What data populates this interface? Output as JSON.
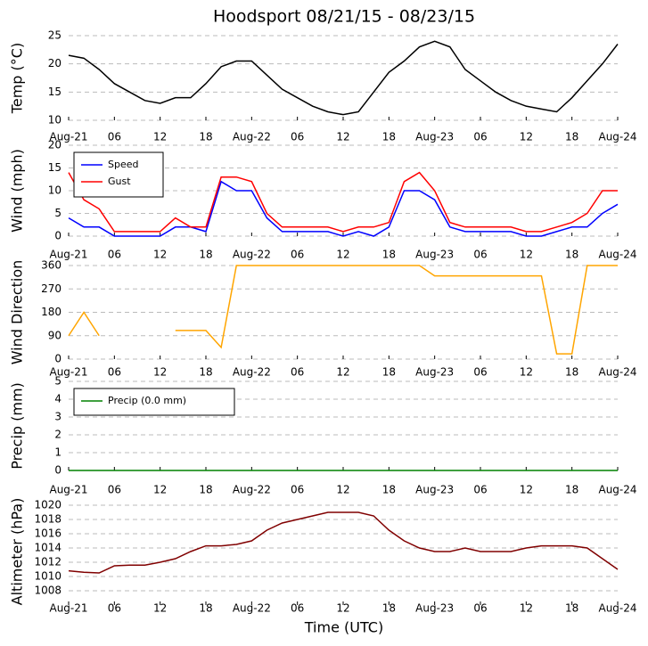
{
  "title": "Hoodsport 08/21/15 - 08/23/15",
  "xlabel": "Time (UTC)",
  "chart_data": [
    {
      "type": "line",
      "ylabel": "Temp (°C)",
      "ylim": [
        10,
        25
      ],
      "yticks": [
        10,
        15,
        20,
        25
      ],
      "grid": true,
      "x": [
        0,
        2,
        4,
        6,
        8,
        10,
        12,
        14,
        16,
        18,
        20,
        22,
        24,
        26,
        28,
        30,
        32,
        34,
        36,
        38,
        40,
        42,
        44,
        46,
        48,
        50,
        52,
        54,
        56,
        58,
        60,
        62,
        64,
        66,
        68,
        70,
        72
      ],
      "xlim": [
        0,
        72
      ],
      "xticks": [
        {
          "value": 0,
          "label": "Aug-21"
        },
        {
          "value": 6,
          "label": "06"
        },
        {
          "value": 12,
          "label": "12"
        },
        {
          "value": 18,
          "label": "18"
        },
        {
          "value": 24,
          "label": "Aug-22"
        },
        {
          "value": 30,
          "label": "06"
        },
        {
          "value": 36,
          "label": "12"
        },
        {
          "value": 42,
          "label": "18"
        },
        {
          "value": 48,
          "label": "Aug-23"
        },
        {
          "value": 54,
          "label": "06"
        },
        {
          "value": 60,
          "label": "12"
        },
        {
          "value": 66,
          "label": "18"
        },
        {
          "value": 72,
          "label": "Aug-24"
        }
      ],
      "series": [
        {
          "name": "Temp",
          "color": "#000000",
          "values": [
            21.5,
            21,
            19,
            16.5,
            15,
            13.5,
            13,
            14,
            14,
            16.5,
            19.5,
            20.5,
            20.5,
            18,
            15.5,
            14,
            12.5,
            11.5,
            11,
            11.5,
            15,
            18.5,
            20.5,
            23,
            24,
            23,
            19,
            17,
            15,
            13.5,
            12.5,
            12,
            11.5,
            14,
            17,
            20,
            23.5
          ]
        }
      ]
    },
    {
      "type": "line",
      "ylabel": "Wind (mph)",
      "ylim": [
        0,
        20
      ],
      "yticks": [
        0,
        5,
        10,
        15,
        20
      ],
      "grid": true,
      "legend": "upper left",
      "x": [
        0,
        2,
        4,
        6,
        8,
        10,
        12,
        14,
        16,
        18,
        20,
        22,
        24,
        26,
        28,
        30,
        32,
        34,
        36,
        38,
        40,
        42,
        44,
        46,
        48,
        50,
        52,
        54,
        56,
        58,
        60,
        62,
        64,
        66,
        68,
        70,
        72
      ],
      "xlim": [
        0,
        72
      ],
      "xticks": [
        {
          "value": 0,
          "label": "Aug-21"
        },
        {
          "value": 6,
          "label": "06"
        },
        {
          "value": 12,
          "label": "12"
        },
        {
          "value": 18,
          "label": "18"
        },
        {
          "value": 24,
          "label": "Aug-22"
        },
        {
          "value": 30,
          "label": "06"
        },
        {
          "value": 36,
          "label": "12"
        },
        {
          "value": 42,
          "label": "18"
        },
        {
          "value": 48,
          "label": "Aug-23"
        },
        {
          "value": 54,
          "label": "06"
        },
        {
          "value": 60,
          "label": "12"
        },
        {
          "value": 66,
          "label": "18"
        },
        {
          "value": 72,
          "label": "Aug-24"
        }
      ],
      "series": [
        {
          "name": "Speed",
          "color": "#0000ff",
          "values": [
            4,
            2,
            2,
            0,
            0,
            0,
            0,
            2,
            2,
            1,
            12,
            10,
            10,
            4,
            1,
            1,
            1,
            1,
            0,
            1,
            0,
            2,
            10,
            10,
            8,
            2,
            1,
            1,
            1,
            1,
            0,
            0,
            1,
            2,
            2,
            5,
            7
          ]
        },
        {
          "name": "Gust",
          "color": "#ff0000",
          "values": [
            14,
            8,
            6,
            1,
            1,
            1,
            1,
            4,
            2,
            2,
            13,
            13,
            12,
            5,
            2,
            2,
            2,
            2,
            1,
            2,
            2,
            3,
            12,
            14,
            10,
            3,
            2,
            2,
            2,
            2,
            1,
            1,
            2,
            3,
            5,
            10,
            10
          ]
        }
      ]
    },
    {
      "type": "line",
      "ylabel": "Wind Direction",
      "ylim": [
        0,
        360
      ],
      "yticks": [
        0,
        90,
        180,
        270,
        360
      ],
      "grid": true,
      "x": [
        0,
        2,
        4,
        6,
        8,
        10,
        12,
        14,
        16,
        18,
        20,
        22,
        24,
        26,
        28,
        30,
        32,
        34,
        36,
        38,
        40,
        42,
        44,
        46,
        48,
        50,
        52,
        54,
        56,
        58,
        60,
        62,
        64,
        66,
        68,
        70,
        72
      ],
      "xlim": [
        0,
        72
      ],
      "xticks": [
        {
          "value": 0,
          "label": "Aug-21"
        },
        {
          "value": 6,
          "label": "06"
        },
        {
          "value": 12,
          "label": "12"
        },
        {
          "value": 18,
          "label": "18"
        },
        {
          "value": 24,
          "label": "Aug-22"
        },
        {
          "value": 30,
          "label": "06"
        },
        {
          "value": 36,
          "label": "12"
        },
        {
          "value": 42,
          "label": "18"
        },
        {
          "value": 48,
          "label": "Aug-23"
        },
        {
          "value": 54,
          "label": "06"
        },
        {
          "value": 60,
          "label": "12"
        },
        {
          "value": 66,
          "label": "18"
        },
        {
          "value": 72,
          "label": "Aug-24"
        }
      ],
      "series": [
        {
          "name": "Direction",
          "color": "#ffa500",
          "values": [
            90,
            180,
            90,
            null,
            null,
            null,
            null,
            110,
            110,
            110,
            45,
            360,
            360,
            360,
            360,
            360,
            360,
            360,
            360,
            360,
            360,
            360,
            360,
            360,
            320,
            320,
            320,
            320,
            320,
            320,
            320,
            320,
            20,
            20,
            360,
            360,
            360
          ]
        }
      ]
    },
    {
      "type": "line",
      "ylabel": "Precip (mm)",
      "ylim": [
        0,
        5
      ],
      "yticks": [
        0,
        1,
        2,
        3,
        4,
        5
      ],
      "grid": true,
      "legend": "upper left",
      "x": [
        0,
        2,
        4,
        6,
        8,
        10,
        12,
        14,
        16,
        18,
        20,
        22,
        24,
        26,
        28,
        30,
        32,
        34,
        36,
        38,
        40,
        42,
        44,
        46,
        48,
        50,
        52,
        54,
        56,
        58,
        60,
        62,
        64,
        66,
        68,
        70,
        72
      ],
      "xlim": [
        0,
        72
      ],
      "xticks": [
        {
          "value": 0,
          "label": "Aug-21"
        },
        {
          "value": 6,
          "label": "06"
        },
        {
          "value": 12,
          "label": "12"
        },
        {
          "value": 18,
          "label": "18"
        },
        {
          "value": 24,
          "label": "Aug-22"
        },
        {
          "value": 30,
          "label": "06"
        },
        {
          "value": 36,
          "label": "12"
        },
        {
          "value": 42,
          "label": "18"
        },
        {
          "value": 48,
          "label": "Aug-23"
        },
        {
          "value": 54,
          "label": "06"
        },
        {
          "value": 60,
          "label": "12"
        },
        {
          "value": 66,
          "label": "18"
        },
        {
          "value": 72,
          "label": "Aug-24"
        }
      ],
      "series": [
        {
          "name": "Precip (0.0 mm)",
          "color": "#008000",
          "values": [
            0,
            0,
            0,
            0,
            0,
            0,
            0,
            0,
            0,
            0,
            0,
            0,
            0,
            0,
            0,
            0,
            0,
            0,
            0,
            0,
            0,
            0,
            0,
            0,
            0,
            0,
            0,
            0,
            0,
            0,
            0,
            0,
            0,
            0,
            0,
            0,
            0
          ]
        }
      ]
    },
    {
      "type": "line",
      "ylabel": "Altimeter (hPa)",
      "ylim": [
        1006,
        1021
      ],
      "yticks": [
        1008,
        1010,
        1012,
        1014,
        1016,
        1018,
        1020
      ],
      "grid": true,
      "x": [
        0,
        2,
        4,
        6,
        8,
        10,
        12,
        14,
        16,
        18,
        20,
        22,
        24,
        26,
        28,
        30,
        32,
        34,
        36,
        38,
        40,
        42,
        44,
        46,
        48,
        50,
        52,
        54,
        56,
        58,
        60,
        62,
        64,
        66,
        68,
        70,
        72
      ],
      "xlim": [
        0,
        72
      ],
      "xticks": [
        {
          "value": 0,
          "label": "Aug-21"
        },
        {
          "value": 6,
          "label": "06"
        },
        {
          "value": 12,
          "label": "12"
        },
        {
          "value": 18,
          "label": "18"
        },
        {
          "value": 24,
          "label": "Aug-22"
        },
        {
          "value": 30,
          "label": "06"
        },
        {
          "value": 36,
          "label": "12"
        },
        {
          "value": 42,
          "label": "18"
        },
        {
          "value": 48,
          "label": "Aug-23"
        },
        {
          "value": 54,
          "label": "06"
        },
        {
          "value": 60,
          "label": "12"
        },
        {
          "value": 66,
          "label": "18"
        },
        {
          "value": 72,
          "label": "Aug-24"
        }
      ],
      "series": [
        {
          "name": "Altimeter",
          "color": "#800000",
          "values": [
            1010.8,
            1010.6,
            1010.5,
            1011.5,
            1011.6,
            1011.6,
            1012,
            1012.5,
            1013.5,
            1014.3,
            1014.3,
            1014.5,
            1015,
            1016.5,
            1017.5,
            1018,
            1018.5,
            1019,
            1019,
            1019,
            1018.5,
            1016.5,
            1015,
            1014,
            1013.5,
            1013.5,
            1014,
            1013.5,
            1013.5,
            1013.5,
            1014,
            1014.3,
            1014.3,
            1014.3,
            1014,
            1012.5,
            1011
          ]
        }
      ]
    }
  ]
}
